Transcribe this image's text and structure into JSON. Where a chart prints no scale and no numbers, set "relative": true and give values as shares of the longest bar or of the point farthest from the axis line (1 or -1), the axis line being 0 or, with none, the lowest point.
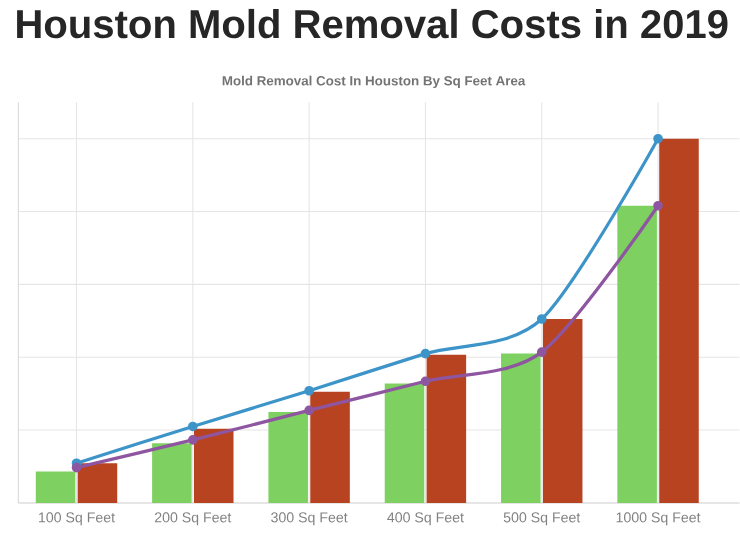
{
  "chart_data": {
    "type": "bar",
    "title": "Houston Mold Removal Costs in 2019",
    "subtitle": "Mold Removal Cost In Houston By Sq Feet Area",
    "categories": [
      "100 Sq Feet",
      "200 Sq Feet",
      "300 Sq Feet",
      "400 Sq Feet",
      "500 Sq Feet",
      "1000 Sq Feet"
    ],
    "relative": true,
    "grid": true,
    "marker": "circle",
    "series": [
      {
        "color": "#7ed160",
        "values": [
          0.086,
          0.164,
          0.25,
          0.328,
          0.41,
          0.816
        ]
      },
      {
        "color": "#b84321",
        "values": [
          0.109,
          0.204,
          0.305,
          0.407,
          0.505,
          1.0
        ]
      },
      {
        "type": "line",
        "color": "#3d94c9",
        "values": [
          0.109,
          0.21,
          0.308,
          0.41,
          0.505,
          1.0
        ]
      },
      {
        "type": "line",
        "color": "#8e55a0",
        "values": [
          0.097,
          0.173,
          0.254,
          0.334,
          0.414,
          0.816
        ]
      }
    ]
  }
}
